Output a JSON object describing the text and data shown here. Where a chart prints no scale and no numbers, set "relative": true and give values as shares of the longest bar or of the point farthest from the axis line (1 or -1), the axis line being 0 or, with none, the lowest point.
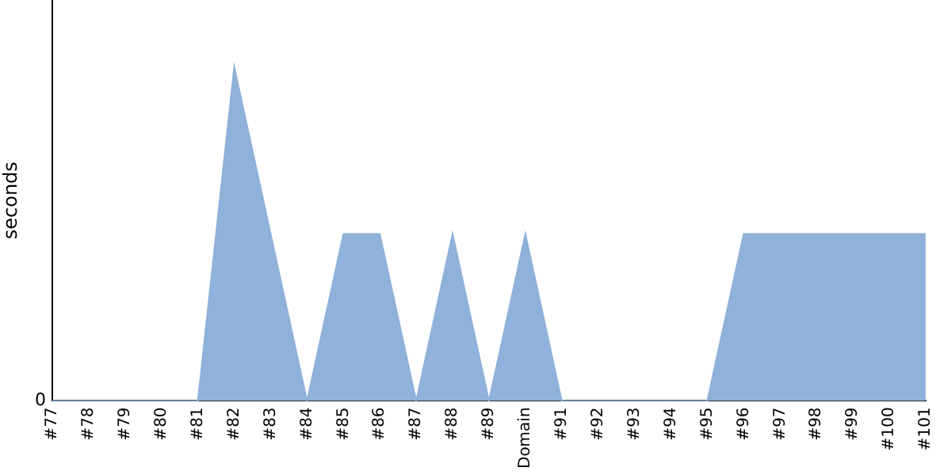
{
  "chart_data": {
    "type": "area",
    "ylabel": "seconds",
    "relative": true,
    "legend": false,
    "grid": false,
    "categories": [
      "#77",
      "#78",
      "#79",
      "#80",
      "#81",
      "#82",
      "#83",
      "#84",
      "#85",
      "#86",
      "#87",
      "#88",
      "#89",
      "Domain",
      "#91",
      "#92",
      "#93",
      "#94",
      "#95",
      "#96",
      "#97",
      "#98",
      "#99",
      "#100",
      "#101"
    ],
    "series": [
      {
        "color": "#8fb1da",
        "values": [
          0,
          0,
          0,
          0,
          0,
          1,
          0.5,
          0,
          0.5,
          0.5,
          0,
          0.5,
          0,
          0.5,
          0,
          0,
          0,
          0,
          0,
          0.5,
          0.5,
          0.5,
          0.5,
          0.5,
          0.5
        ]
      }
    ],
    "annotations": [
      "0"
    ]
  }
}
